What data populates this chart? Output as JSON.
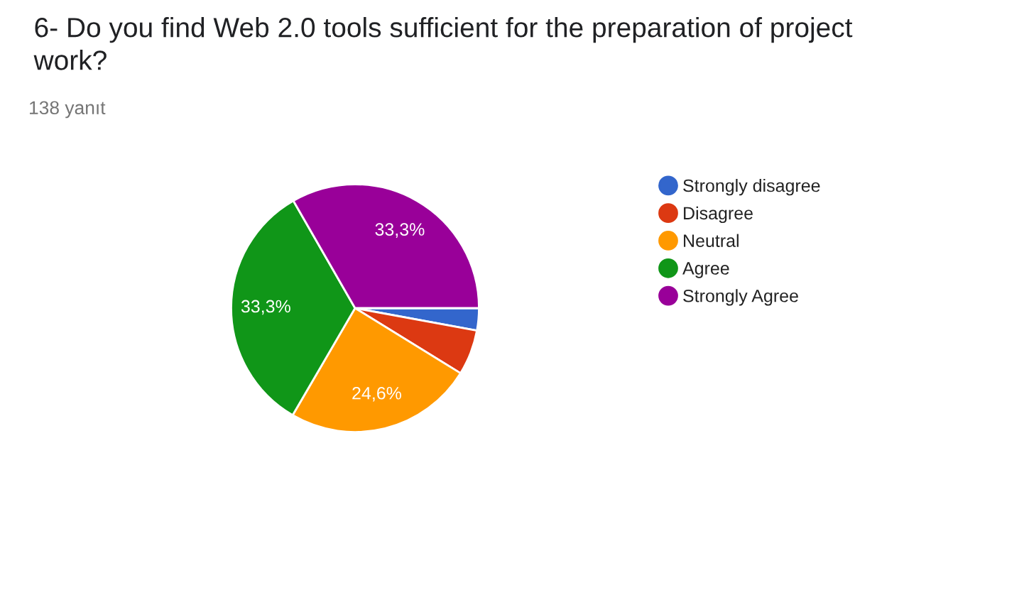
{
  "chart_data": {
    "type": "pie",
    "title": "6- Do you find Web 2.0 tools sufficient for the preparation of project work?",
    "subtitle": "138 yanıt",
    "categories": [
      "Strongly disagree",
      "Disagree",
      "Neutral",
      "Agree",
      "Strongly Agree"
    ],
    "values": [
      2.9,
      5.9,
      24.6,
      33.3,
      33.3
    ],
    "colors": [
      "#3366cc",
      "#dc3912",
      "#ff9900",
      "#109618",
      "#990099"
    ],
    "value_labels": [
      null,
      null,
      "24,6%",
      "33,3%",
      "33,3%"
    ],
    "legend": "right"
  }
}
